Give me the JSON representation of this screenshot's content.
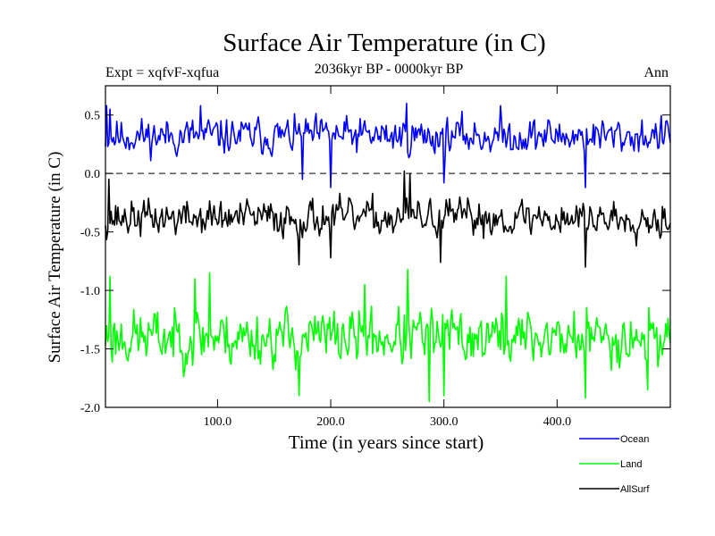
{
  "chart_data": {
    "type": "line",
    "title": "Surface Air Temperature (in C)",
    "subtitle": "2036kyr BP - 0000kyr BP",
    "experiment_label": "Expt = xqfvF-xqfua",
    "season_label": "Ann",
    "xlabel": "Time (in years since start)",
    "ylabel": "Surface Air Temperature (in C)",
    "xlim": [
      1,
      500
    ],
    "ylim": [
      -2.0,
      0.75
    ],
    "xticks": [
      100,
      200,
      300,
      400
    ],
    "xtick_labels": [
      "100.0",
      "200.0",
      "300.0",
      "400.0"
    ],
    "yticks": [
      0.5,
      0.0,
      -0.5,
      -1.0,
      -1.5,
      -2.0
    ],
    "ytick_labels": [
      "0.5",
      "0.0",
      "-0.5",
      "-1.0",
      "-1.5",
      "-2.0"
    ],
    "reference_line": 0.0,
    "series": [
      {
        "name": "Ocean",
        "color": "#0000ff",
        "mean": 0.32,
        "amplitude": 0.11,
        "seed": 11,
        "features": [
          [
            2,
            0.58
          ],
          [
            5,
            0.55
          ],
          [
            85,
            0.58
          ],
          [
            175,
            -0.05
          ],
          [
            200,
            -0.12
          ],
          [
            267,
            0.6
          ],
          [
            300,
            -0.08
          ],
          [
            350,
            0.58
          ],
          [
            425,
            -0.12
          ],
          [
            497,
            0.45
          ]
        ]
      },
      {
        "name": "Land",
        "color": "#00ff00",
        "mean": -1.4,
        "amplitude": 0.17,
        "seed": 23,
        "features": [
          [
            5,
            -0.88
          ],
          [
            80,
            -0.9
          ],
          [
            93,
            -0.85
          ],
          [
            172,
            -1.9
          ],
          [
            230,
            -0.95
          ],
          [
            268,
            -0.82
          ],
          [
            287,
            -1.95
          ],
          [
            300,
            -1.9
          ],
          [
            355,
            -0.88
          ],
          [
            425,
            -1.92
          ],
          [
            480,
            -1.85
          ]
        ]
      },
      {
        "name": "AllSurf",
        "color": "#000000",
        "mean": -0.38,
        "amplitude": 0.11,
        "seed": 37,
        "features": [
          [
            4,
            -0.05
          ],
          [
            172,
            -0.78
          ],
          [
            200,
            -0.72
          ],
          [
            265,
            0.02
          ],
          [
            270,
            0.0
          ],
          [
            297,
            -0.76
          ],
          [
            425,
            -0.8
          ]
        ]
      }
    ],
    "legend_position": "bottom-right"
  }
}
